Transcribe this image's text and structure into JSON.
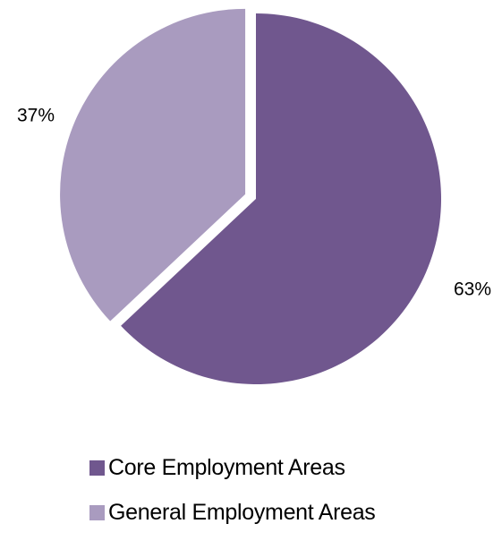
{
  "chart_data": {
    "type": "pie",
    "categories": [
      "Core Employment Areas",
      "General Employment Areas"
    ],
    "values": [
      63,
      37
    ],
    "labels": [
      "63%",
      "37%"
    ],
    "colors": [
      "#70578E",
      "#A99BBF"
    ],
    "exploded": "General Employment Areas",
    "title": "",
    "legend_position": "bottom"
  }
}
